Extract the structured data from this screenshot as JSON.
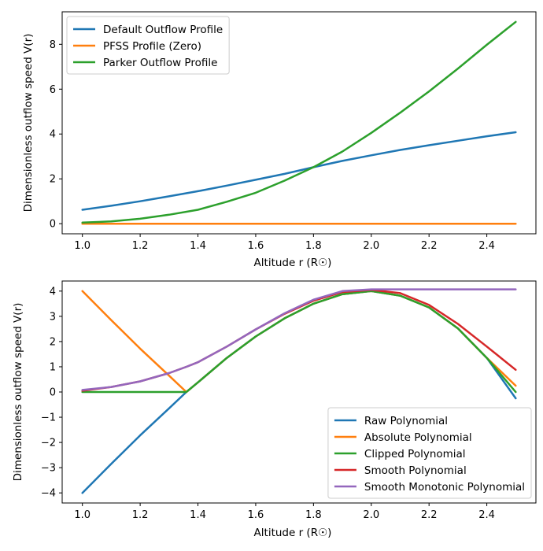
{
  "chart_data": [
    {
      "type": "line",
      "xlabel": "Altitude r (R☉)",
      "ylabel": "Dimensionless outflow speed V(r)",
      "xlim": [
        0.93,
        2.57
      ],
      "ylim": [
        -0.45,
        9.45
      ],
      "xticks": [
        1.0,
        1.2,
        1.4,
        1.6,
        1.8,
        2.0,
        2.2,
        2.4
      ],
      "xtick_labels": [
        "1.0",
        "1.2",
        "1.4",
        "1.6",
        "1.8",
        "2.0",
        "2.2",
        "2.4"
      ],
      "yticks": [
        0,
        2,
        4,
        6,
        8
      ],
      "ytick_labels": [
        "0",
        "2",
        "4",
        "6",
        "8"
      ],
      "grid": false,
      "legend_position": "top-left",
      "x": [
        1.0,
        1.1,
        1.2,
        1.3,
        1.4,
        1.5,
        1.6,
        1.7,
        1.8,
        1.9,
        2.0,
        2.1,
        2.2,
        2.3,
        2.4,
        2.5
      ],
      "series": [
        {
          "name": "Default Outflow Profile",
          "color": "#1f77b4",
          "values": [
            0.62,
            0.8,
            1.0,
            1.22,
            1.45,
            1.7,
            1.96,
            2.22,
            2.52,
            2.8,
            3.05,
            3.29,
            3.5,
            3.7,
            3.9,
            4.08
          ]
        },
        {
          "name": "PFSS Profile (Zero)",
          "color": "#ff7f0e",
          "values": [
            0,
            0,
            0,
            0,
            0,
            0,
            0,
            0,
            0,
            0,
            0,
            0,
            0,
            0,
            0,
            0
          ]
        },
        {
          "name": "Parker Outflow Profile",
          "color": "#2ca02c",
          "values": [
            0.05,
            0.1,
            0.22,
            0.4,
            0.62,
            0.98,
            1.38,
            1.92,
            2.52,
            3.22,
            4.05,
            4.95,
            5.9,
            6.92,
            7.98,
            9.0
          ]
        }
      ]
    },
    {
      "type": "line",
      "xlabel": "Altitude r (R☉)",
      "ylabel": "Dimensionless outflow speed V(r)",
      "xlim": [
        0.93,
        2.57
      ],
      "ylim": [
        -4.4,
        4.4
      ],
      "xticks": [
        1.0,
        1.2,
        1.4,
        1.6,
        1.8,
        2.0,
        2.2,
        2.4
      ],
      "xtick_labels": [
        "1.0",
        "1.2",
        "1.4",
        "1.6",
        "1.8",
        "2.0",
        "2.2",
        "2.4"
      ],
      "yticks": [
        -4,
        -3,
        -2,
        -1,
        0,
        1,
        2,
        3,
        4
      ],
      "ytick_labels": [
        "−4",
        "−3",
        "−2",
        "−1",
        "0",
        "1",
        "2",
        "3",
        "4"
      ],
      "grid": false,
      "legend_position": "bottom-right",
      "x": [
        1.0,
        1.1,
        1.2,
        1.3,
        1.36,
        1.4,
        1.5,
        1.6,
        1.7,
        1.8,
        1.9,
        2.0,
        2.1,
        2.2,
        2.3,
        2.4,
        2.5
      ],
      "series": [
        {
          "name": "Raw Polynomial",
          "color": "#1f77b4",
          "values": [
            -4.0,
            -2.85,
            -1.72,
            -0.65,
            0.0,
            0.38,
            1.35,
            2.2,
            2.92,
            3.5,
            3.88,
            4.0,
            3.82,
            3.35,
            2.52,
            1.35,
            -0.25
          ]
        },
        {
          "name": "Absolute Polynomial",
          "color": "#ff7f0e",
          "values": [
            4.0,
            2.85,
            1.72,
            0.65,
            0.0,
            0.38,
            1.35,
            2.2,
            2.92,
            3.5,
            3.88,
            4.0,
            3.82,
            3.35,
            2.52,
            1.35,
            0.25
          ]
        },
        {
          "name": "Clipped Polynomial",
          "color": "#2ca02c",
          "values": [
            0,
            0,
            0,
            0,
            0.0,
            0.38,
            1.35,
            2.2,
            2.92,
            3.5,
            3.88,
            4.0,
            3.82,
            3.35,
            2.52,
            1.35,
            0.0
          ]
        },
        {
          "name": "Smooth Polynomial",
          "color": "#d62728",
          "values": [
            0.05,
            0.2,
            0.42,
            0.75,
            1.0,
            1.18,
            1.8,
            2.48,
            3.1,
            3.62,
            3.96,
            4.05,
            3.92,
            3.45,
            2.7,
            1.8,
            0.88
          ]
        },
        {
          "name": "Smooth Monotonic Polynomial",
          "color": "#9467bd",
          "values": [
            0.08,
            0.2,
            0.42,
            0.75,
            1.0,
            1.18,
            1.8,
            2.48,
            3.12,
            3.66,
            4.0,
            4.07,
            4.07,
            4.07,
            4.07,
            4.07,
            4.07
          ]
        }
      ]
    }
  ]
}
